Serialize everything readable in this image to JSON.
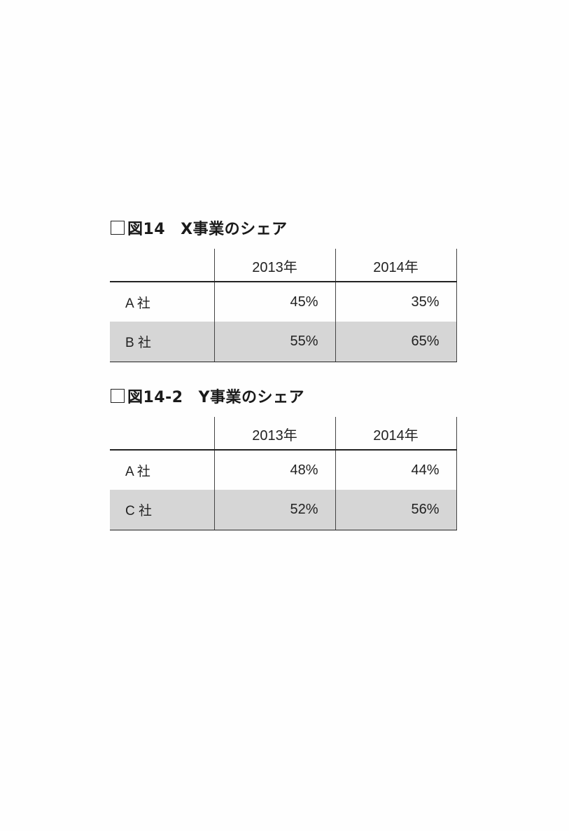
{
  "figures": [
    {
      "number": "図14",
      "title": "X事業のシェア",
      "years": [
        "2013年",
        "2014年"
      ],
      "rows": [
        {
          "company": "A 社",
          "values": [
            "45%",
            "35%"
          ]
        },
        {
          "company": "B 社",
          "values": [
            "55%",
            "65%"
          ]
        }
      ]
    },
    {
      "number": "図14-2",
      "title": "Y事業のシェア",
      "years": [
        "2013年",
        "2014年"
      ],
      "rows": [
        {
          "company": "A 社",
          "values": [
            "48%",
            "44%"
          ]
        },
        {
          "company": "C 社",
          "values": [
            "52%",
            "56%"
          ]
        }
      ]
    }
  ],
  "colors": {
    "row_shading": "#d6d6d6",
    "rule": "#222222"
  }
}
